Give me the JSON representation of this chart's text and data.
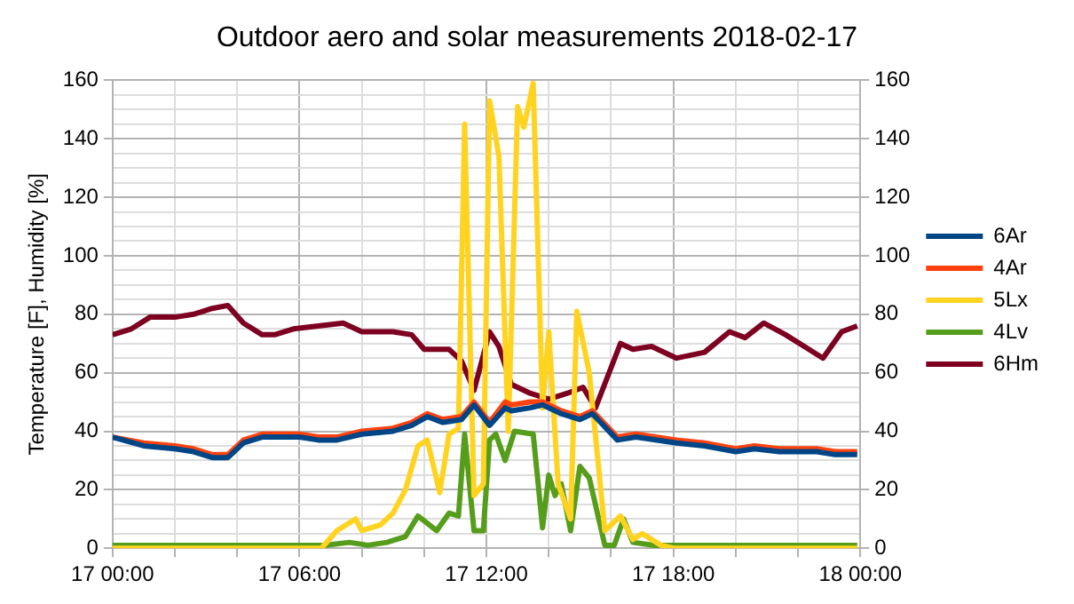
{
  "chart_data": {
    "type": "line",
    "title": "Outdoor aero and solar measurements 2018-02-17",
    "ylabel": "Temperature [F], Humidity [%]",
    "xlim": [
      "2018-02-17T00:00",
      "2018-02-18T00:00"
    ],
    "xticks": [
      {
        "value": "2018-02-17T00:00",
        "label": "17 00:00"
      },
      {
        "value": "2018-02-17T02:00",
        "label": null
      },
      {
        "value": "2018-02-17T04:00",
        "label": null
      },
      {
        "value": "2018-02-17T06:00",
        "label": "17 06:00"
      },
      {
        "value": "2018-02-17T08:00",
        "label": null
      },
      {
        "value": "2018-02-17T10:00",
        "label": null
      },
      {
        "value": "2018-02-17T12:00",
        "label": "17 12:00"
      },
      {
        "value": "2018-02-17T14:00",
        "label": null
      },
      {
        "value": "2018-02-17T16:00",
        "label": null
      },
      {
        "value": "2018-02-17T18:00",
        "label": "17 18:00"
      },
      {
        "value": "2018-02-17T20:00",
        "label": null
      },
      {
        "value": "2018-02-17T22:00",
        "label": null
      },
      {
        "value": "2018-02-18T00:00",
        "label": "18 00:00"
      }
    ],
    "ylim": [
      0,
      160
    ],
    "yticks": [
      0,
      {
        "value": 5,
        "label": null
      },
      {
        "value": 10,
        "label": null
      },
      {
        "value": 15,
        "label": null
      },
      20,
      {
        "value": 25,
        "label": null
      },
      {
        "value": 30,
        "label": null
      },
      {
        "value": 35,
        "label": null
      },
      40,
      {
        "value": 45,
        "label": null
      },
      {
        "value": 50,
        "label": null
      },
      {
        "value": 55,
        "label": null
      },
      60,
      {
        "value": 65,
        "label": null
      },
      {
        "value": 70,
        "label": null
      },
      {
        "value": 75,
        "label": null
      },
      80,
      {
        "value": 85,
        "label": null
      },
      {
        "value": 90,
        "label": null
      },
      {
        "value": 95,
        "label": null
      },
      100,
      {
        "value": 105,
        "label": null
      },
      {
        "value": 110,
        "label": null
      },
      {
        "value": 115,
        "label": null
      },
      120,
      {
        "value": 125,
        "label": null
      },
      {
        "value": 130,
        "label": null
      },
      {
        "value": 135,
        "label": null
      },
      140,
      {
        "value": 145,
        "label": null
      },
      {
        "value": 150,
        "label": null
      },
      {
        "value": 155,
        "label": null
      },
      160
    ],
    "y2lim": [
      0,
      160
    ],
    "y2ticks": [
      0,
      20,
      40,
      60,
      80,
      100,
      120,
      140,
      160
    ],
    "grid": true,
    "legend": "right",
    "marker": "none",
    "line_style": "solid",
    "series": [
      {
        "name": "6Ar",
        "color": "#004586",
        "x": [
          "2018-02-17T00:00",
          "2018-02-17T01:00",
          "2018-02-17T02:00",
          "2018-02-17T02:36",
          "2018-02-17T03:12",
          "2018-02-17T03:42",
          "2018-02-17T04:12",
          "2018-02-17T04:48",
          "2018-02-17T05:36",
          "2018-02-17T06:00",
          "2018-02-17T06:36",
          "2018-02-17T07:12",
          "2018-02-17T08:00",
          "2018-02-17T09:00",
          "2018-02-17T09:36",
          "2018-02-17T10:06",
          "2018-02-17T10:36",
          "2018-02-17T11:12",
          "2018-02-17T11:36",
          "2018-02-17T12:06",
          "2018-02-17T12:36",
          "2018-02-17T12:48",
          "2018-02-17T13:24",
          "2018-02-17T13:48",
          "2018-02-17T14:24",
          "2018-02-17T15:00",
          "2018-02-17T15:24",
          "2018-02-17T16:12",
          "2018-02-17T16:48",
          "2018-02-17T18:06",
          "2018-02-17T19:00",
          "2018-02-17T20:00",
          "2018-02-17T20:36",
          "2018-02-17T21:24",
          "2018-02-17T22:36",
          "2018-02-17T23:12",
          "2018-02-17T23:54"
        ],
        "values": [
          38,
          35,
          34,
          33,
          31,
          31,
          36,
          38,
          38,
          38,
          37,
          37,
          39,
          40,
          42,
          45,
          43,
          44,
          49,
          42,
          48,
          47,
          48,
          49,
          46,
          44,
          46,
          37,
          38,
          36,
          35,
          33,
          34,
          33,
          33,
          32,
          32
        ]
      },
      {
        "name": "4Ar",
        "color": "#ff420e",
        "x": [
          "2018-02-17T00:00",
          "2018-02-17T01:00",
          "2018-02-17T02:00",
          "2018-02-17T02:36",
          "2018-02-17T03:12",
          "2018-02-17T03:42",
          "2018-02-17T04:12",
          "2018-02-17T04:48",
          "2018-02-17T05:36",
          "2018-02-17T06:00",
          "2018-02-17T06:36",
          "2018-02-17T07:12",
          "2018-02-17T08:00",
          "2018-02-17T09:00",
          "2018-02-17T09:36",
          "2018-02-17T10:06",
          "2018-02-17T10:36",
          "2018-02-17T11:12",
          "2018-02-17T11:36",
          "2018-02-17T12:06",
          "2018-02-17T12:36",
          "2018-02-17T12:48",
          "2018-02-17T13:24",
          "2018-02-17T13:48",
          "2018-02-17T14:24",
          "2018-02-17T15:00",
          "2018-02-17T15:24",
          "2018-02-17T16:12",
          "2018-02-17T16:48",
          "2018-02-17T18:06",
          "2018-02-17T19:00",
          "2018-02-17T20:00",
          "2018-02-17T20:36",
          "2018-02-17T21:24",
          "2018-02-17T22:36",
          "2018-02-17T23:12",
          "2018-02-17T23:54"
        ],
        "values": [
          38,
          36,
          35,
          34,
          32,
          32,
          37,
          39,
          39,
          39,
          38,
          38,
          40,
          41,
          43,
          46,
          44,
          45,
          50,
          43,
          50,
          49,
          50,
          50,
          47,
          45,
          47,
          38,
          39,
          37,
          36,
          34,
          35,
          34,
          34,
          33,
          33
        ]
      },
      {
        "name": "5Lx",
        "color": "#ffd320",
        "x": [
          "2018-02-17T00:00",
          "2018-02-17T06:42",
          "2018-02-17T07:12",
          "2018-02-17T07:48",
          "2018-02-17T08:00",
          "2018-02-17T08:36",
          "2018-02-17T09:00",
          "2018-02-17T09:24",
          "2018-02-17T09:48",
          "2018-02-17T10:06",
          "2018-02-17T10:30",
          "2018-02-17T10:48",
          "2018-02-17T11:06",
          "2018-02-17T11:18",
          "2018-02-17T11:36",
          "2018-02-17T11:54",
          "2018-02-17T12:06",
          "2018-02-17T12:24",
          "2018-02-17T12:42",
          "2018-02-17T13:00",
          "2018-02-17T13:12",
          "2018-02-17T13:30",
          "2018-02-17T13:48",
          "2018-02-17T14:00",
          "2018-02-17T14:18",
          "2018-02-17T14:42",
          "2018-02-17T14:54",
          "2018-02-17T15:18",
          "2018-02-17T15:48",
          "2018-02-17T16:18",
          "2018-02-17T16:42",
          "2018-02-17T17:00",
          "2018-02-17T17:36",
          "2018-02-17T18:00",
          "2018-02-17T23:54"
        ],
        "values": [
          0,
          0,
          6,
          10,
          6,
          8,
          12,
          20,
          35,
          37,
          19,
          39,
          41,
          145,
          18,
          22,
          153,
          134,
          40,
          151,
          144,
          159,
          48,
          74,
          22,
          10,
          81,
          60,
          6,
          11,
          3,
          5,
          1,
          0,
          0
        ]
      },
      {
        "name": "4Lv",
        "color": "#579d1c",
        "x": [
          "2018-02-17T00:00",
          "2018-02-17T06:48",
          "2018-02-17T07:36",
          "2018-02-17T08:12",
          "2018-02-17T08:48",
          "2018-02-17T09:24",
          "2018-02-17T09:48",
          "2018-02-17T10:24",
          "2018-02-17T10:48",
          "2018-02-17T11:06",
          "2018-02-17T11:18",
          "2018-02-17T11:36",
          "2018-02-17T11:54",
          "2018-02-17T12:06",
          "2018-02-17T12:18",
          "2018-02-17T12:36",
          "2018-02-17T12:54",
          "2018-02-17T13:30",
          "2018-02-17T13:48",
          "2018-02-17T14:00",
          "2018-02-17T14:12",
          "2018-02-17T14:24",
          "2018-02-17T14:42",
          "2018-02-17T15:00",
          "2018-02-17T15:18",
          "2018-02-17T15:48",
          "2018-02-17T16:06",
          "2018-02-17T16:24",
          "2018-02-17T16:42",
          "2018-02-17T17:24",
          "2018-02-17T23:54"
        ],
        "values": [
          1,
          1,
          2,
          1,
          2,
          4,
          11,
          6,
          12,
          11,
          39,
          6,
          6,
          37,
          39,
          30,
          40,
          39,
          7,
          25,
          18,
          22,
          6,
          28,
          24,
          1,
          1,
          10,
          2,
          1,
          1
        ]
      },
      {
        "name": "6Hm",
        "color": "#7e0021",
        "x": [
          "2018-02-17T00:00",
          "2018-02-17T00:36",
          "2018-02-17T01:12",
          "2018-02-17T02:00",
          "2018-02-17T02:36",
          "2018-02-17T03:12",
          "2018-02-17T03:42",
          "2018-02-17T04:12",
          "2018-02-17T04:48",
          "2018-02-17T05:12",
          "2018-02-17T05:48",
          "2018-02-17T06:36",
          "2018-02-17T07:24",
          "2018-02-17T08:00",
          "2018-02-17T09:00",
          "2018-02-17T09:36",
          "2018-02-17T10:00",
          "2018-02-17T10:48",
          "2018-02-17T11:12",
          "2018-02-17T11:36",
          "2018-02-17T12:06",
          "2018-02-17T12:24",
          "2018-02-17T12:48",
          "2018-02-17T13:24",
          "2018-02-17T14:00",
          "2018-02-17T14:36",
          "2018-02-17T15:06",
          "2018-02-17T15:30",
          "2018-02-17T16:18",
          "2018-02-17T16:42",
          "2018-02-17T17:18",
          "2018-02-17T18:06",
          "2018-02-17T19:00",
          "2018-02-17T19:48",
          "2018-02-17T20:18",
          "2018-02-17T20:54",
          "2018-02-17T21:36",
          "2018-02-17T22:12",
          "2018-02-17T22:48",
          "2018-02-17T23:24",
          "2018-02-17T23:54"
        ],
        "values": [
          73,
          75,
          79,
          79,
          80,
          82,
          83,
          77,
          73,
          73,
          75,
          76,
          77,
          74,
          74,
          73,
          68,
          68,
          64,
          54,
          74,
          69,
          56,
          53,
          51,
          53,
          55,
          48,
          70,
          68,
          69,
          65,
          67,
          74,
          72,
          77,
          73,
          69,
          65,
          74,
          76
        ]
      }
    ]
  }
}
